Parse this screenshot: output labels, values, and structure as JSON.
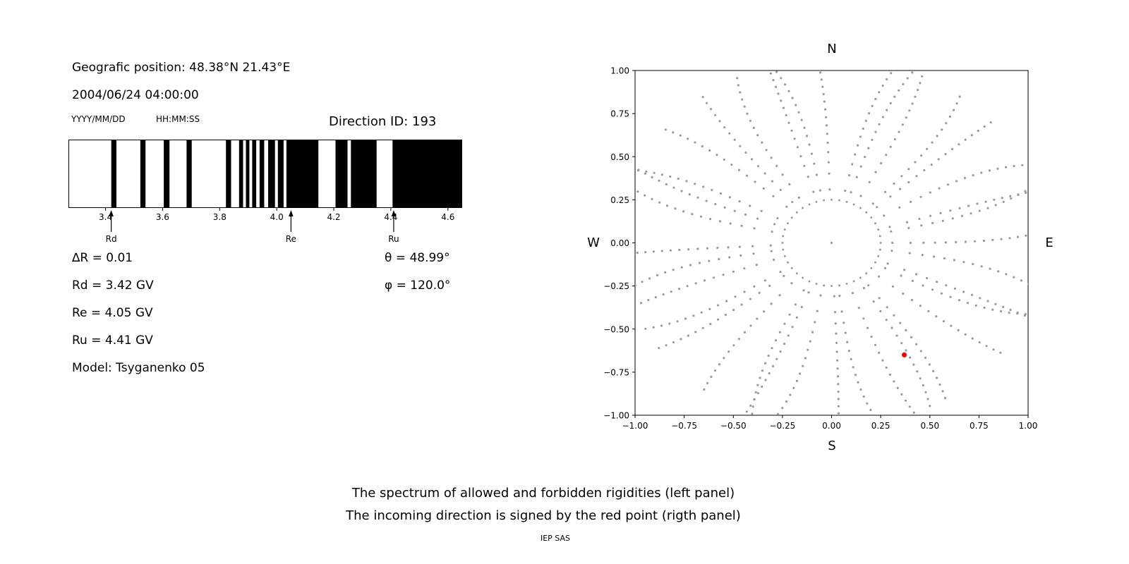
{
  "header": {
    "position": "Geografic position: 48.38°N 21.43°E",
    "datetime": "2004/06/24 04:00:00",
    "date_format_label": "YYYY/MM/DD",
    "time_format_label": "HH:MM:SS",
    "direction_id_label": "Direction ID: 193"
  },
  "parameters": {
    "delta_r": "∆R = 0.01",
    "rd": "Rd = 3.42 GV",
    "re": "Re = 4.05 GV",
    "ru": "Ru = 4.41 GV",
    "model": "Model: Tsyganenko 05",
    "theta": "θ = 48.99°",
    "phi": "φ = 120.0°"
  },
  "caption": {
    "line1": "The spectrum of allowed and forbidden rigidities (left panel)",
    "line2": "The incoming direction is signed by the red point (rigth panel)",
    "credit": "IEP SAS"
  },
  "chart_data": [
    {
      "name": "rigidity-spectrum",
      "type": "bar",
      "title": "Direction ID: 193",
      "xlabel": "",
      "ylabel": "",
      "xlim": [
        3.27,
        4.65
      ],
      "xtick_values": [
        3.4,
        3.6,
        3.8,
        4.0,
        4.2,
        4.4,
        4.6
      ],
      "xtick_labels": [
        "3.4",
        "3.6",
        "3.8",
        "4.0",
        "4.2",
        "4.4",
        "4.6"
      ],
      "allowed_color": "#000000",
      "forbidden_color": "#ffffff",
      "allowed_bands_gv": [
        [
          3.42,
          3.438
        ],
        [
          3.522,
          3.54
        ],
        [
          3.604,
          3.624
        ],
        [
          3.684,
          3.702
        ],
        [
          3.822,
          3.84
        ],
        [
          3.868,
          3.882
        ],
        [
          3.892,
          3.904
        ],
        [
          3.914,
          3.928
        ],
        [
          3.94,
          3.956
        ],
        [
          3.97,
          3.994
        ],
        [
          4.004,
          4.024
        ],
        [
          4.034,
          4.146
        ],
        [
          4.206,
          4.248
        ],
        [
          4.26,
          4.35
        ],
        [
          4.406,
          4.65
        ]
      ],
      "markers": [
        {
          "label": "Rd",
          "value_gv": 3.42
        },
        {
          "label": "Re",
          "value_gv": 4.05
        },
        {
          "label": "Ru",
          "value_gv": 4.41
        }
      ]
    },
    {
      "name": "incoming-direction",
      "type": "scatter",
      "xlim": [
        -1,
        1
      ],
      "ylim": [
        -1,
        1
      ],
      "xtick_values": [
        -1,
        -0.75,
        -0.5,
        -0.25,
        0,
        0.25,
        0.5,
        0.75,
        1
      ],
      "xtick_labels": [
        "−1.00",
        "−0.75",
        "−0.50",
        "−0.25",
        "0.00",
        "0.25",
        "0.50",
        "0.75",
        "1.00"
      ],
      "ytick_values": [
        -1,
        -0.75,
        -0.5,
        -0.25,
        0,
        0.25,
        0.5,
        0.75,
        1
      ],
      "ytick_labels": [
        "−1.00",
        "−0.75",
        "−0.50",
        "−0.25",
        "0.00",
        "0.25",
        "0.50",
        "0.75",
        "1.00"
      ],
      "compass": {
        "north": "N",
        "south": "S",
        "east": "E",
        "west": "W"
      },
      "asymptotic_pattern": {
        "spoke_count": 36,
        "spoke_inner_radius": 0.31,
        "spoke_outer_radius": 1.07,
        "dots_per_spoke": 16,
        "outward_clustering": 0.78,
        "ring_radius": 0.25,
        "ring_dot_count": 40,
        "center_dot": true,
        "dot_color": "#9b9b9b"
      },
      "red_point": {
        "x": 0.37,
        "y": -0.65,
        "color": "#ff0000"
      }
    }
  ]
}
